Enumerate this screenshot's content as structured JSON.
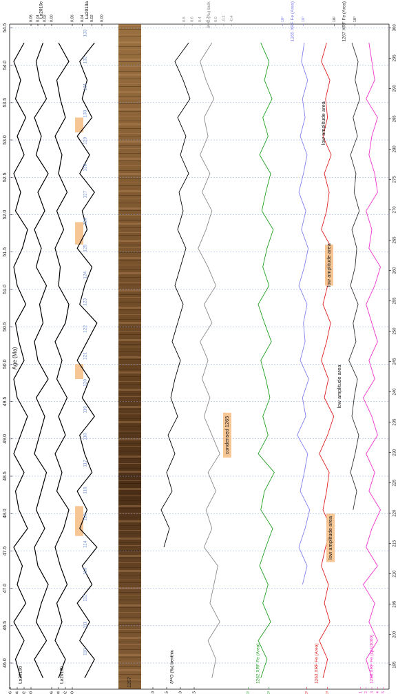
{
  "chart_data": {
    "type": "proxy-stack",
    "x_label": "Age (Ma)",
    "xlim": [
      45.65,
      54.55
    ],
    "xticks": [
      {
        "value": 46,
        "label": "46.0"
      },
      46.5,
      {
        "value": 47,
        "label": "47.0"
      },
      47.5,
      {
        "value": 48,
        "label": "48.0"
      },
      48.5,
      {
        "value": 49,
        "label": "49.0"
      },
      49.5,
      {
        "value": 50,
        "label": "50.0"
      },
      50.5,
      {
        "value": 51,
        "label": "51.0"
      },
      51.5,
      {
        "value": 52,
        "label": "52.0"
      },
      52.5,
      {
        "value": 53,
        "label": "53.0"
      },
      53.5,
      {
        "value": 54,
        "label": "54.0"
      },
      54.5
    ],
    "grid": true,
    "x": [
      45.8,
      46.05,
      46.3,
      46.55,
      46.8,
      47.05,
      47.3,
      47.55,
      47.8,
      48.05,
      48.3,
      48.55,
      48.8,
      49.05,
      49.3,
      49.55,
      49.8,
      50.05,
      50.3,
      50.55,
      50.8,
      51.05,
      51.3,
      51.55,
      51.8,
      52.05,
      52.3,
      52.55,
      52.8,
      53.05,
      53.3,
      53.55,
      53.8,
      54.05,
      54.3
    ],
    "series": [
      {
        "name": "La2010d",
        "color": "#000000",
        "ylim": [
          0.06,
          0.0
        ],
        "yticks": [
          {
            "value": 0.06,
            "label": "0.06"
          },
          {
            "value": 0.04,
            "label": "0.04"
          },
          {
            "value": 0.02,
            "label": "0.02"
          },
          {
            "value": 0,
            "label": "0.00"
          }
        ],
        "values": [
          0.03,
          0.045,
          0.02,
          0.05,
          0.015,
          0.04,
          0.025,
          0.05,
          0.01,
          0.035,
          0.045,
          0.02,
          0.05,
          0.03,
          0.01,
          0.04,
          0.05,
          0.02,
          0.035,
          0.045,
          0.015,
          0.04,
          0.05,
          0.025,
          0.01,
          0.045,
          0.03,
          0.05,
          0.02,
          0.04,
          0.015,
          0.045,
          0.03,
          0.05,
          0.02
        ]
      },
      {
        "name": "La2010c",
        "color": "#000000",
        "ylim": [
          0.06,
          0.0
        ],
        "yticks": [
          {
            "value": 0.06,
            "label": "0.06"
          },
          {
            "value": 0.04,
            "label": "0.04"
          },
          {
            "value": 0.02,
            "label": "0.02"
          },
          {
            "value": 0,
            "label": "0.00"
          }
        ],
        "values": [
          0.025,
          0.05,
          0.015,
          0.045,
          0.03,
          0.01,
          0.04,
          0.05,
          0.02,
          0.045,
          0.03,
          0.015,
          0.05,
          0.035,
          0.02,
          0.045,
          0.01,
          0.04,
          0.05,
          0.025,
          0.035,
          0.015,
          0.045,
          0.03,
          0.05,
          0.02,
          0.04,
          0.01,
          0.045,
          0.03,
          0.05,
          0.015,
          0.035,
          0.045,
          0.025
        ]
      },
      {
        "name": "La2010b",
        "color": "#000000",
        "ylim": [
          0.06,
          0.0
        ],
        "yticks": [
          {
            "value": 0.06,
            "label": "0.06"
          },
          {
            "value": 0.04,
            "label": "0.04"
          },
          {
            "value": 0.02,
            "label": "0.02"
          },
          {
            "value": 0,
            "label": "0.00"
          }
        ],
        "values": [
          0.04,
          0.02,
          0.05,
          0.03,
          0.045,
          0.015,
          0.035,
          0.05,
          0.025,
          0.01,
          0.045,
          0.03,
          0.05,
          0.02,
          0.04,
          0.015,
          0.045,
          0.03,
          0.05,
          0.02,
          0.01,
          0.04,
          0.035,
          0.05,
          0.025,
          0.045,
          0.015,
          0.04,
          0.03,
          0.05,
          0.02,
          0.035,
          0.045,
          0.01,
          0.04
        ]
      },
      {
        "name": "La2010a",
        "color": "#000000",
        "ylim": [
          0.06,
          0.0
        ],
        "yticks": [
          {
            "value": 0.06,
            "label": "0.06"
          },
          {
            "value": 0.04,
            "label": "0.04"
          },
          {
            "value": 0.02,
            "label": "0.02"
          },
          {
            "value": 0,
            "label": "0.00"
          }
        ],
        "values": [
          0.035,
          0.015,
          0.045,
          0.025,
          0.05,
          0.02,
          0.04,
          0.01,
          0.045,
          0.03,
          0.05,
          0.02,
          0.035,
          0.045,
          0.015,
          0.04,
          0.025,
          0.05,
          0.03,
          0.01,
          0.045,
          0.035,
          0.02,
          0.05,
          0.03,
          0.04,
          0.015,
          0.045,
          0.025,
          0.05,
          0.02,
          0.04,
          0.03,
          0.045,
          0.015
        ]
      },
      {
        "name": "δ¹⁸O (‰) benthic",
        "color": "#000000",
        "ylim": [
          1.3,
          -0.7
        ],
        "yticks": [
          {
            "value": 1,
            "label": "1.0"
          },
          0.5,
          {
            "value": 0,
            "label": "0.0"
          },
          -0.5
        ],
        "values": [
          null,
          null,
          null,
          null,
          null,
          null,
          null,
          0.6,
          0.4,
          0.7,
          0.3,
          0.5,
          0.2,
          0.45,
          0.1,
          0.35,
          0.2,
          0.0,
          0.3,
          0.1,
          -0.1,
          0.2,
          0.0,
          -0.2,
          0.1,
          -0.1,
          0.05,
          -0.3,
          0.0,
          -0.2,
          0.1,
          -0.35,
          -0.1,
          0.2,
          -0.3
        ]
      },
      {
        "name": "δ¹³C (‰) bulk",
        "color": "#8a8a8a",
        "ylim": [
          0.9,
          -0.55
        ],
        "yticks": [
          0.8,
          0.6,
          0.4,
          0.2,
          {
            "value": 0,
            "label": "0.0"
          },
          -0.2,
          -0.4
        ],
        "values": [
          0.1,
          0.0,
          0.2,
          -0.1,
          0.15,
          0.05,
          -0.05,
          0.3,
          0.1,
          0.25,
          0.0,
          0.2,
          -0.1,
          0.1,
          0.3,
          0.15,
          0.35,
          0.2,
          0.4,
          0.1,
          0.3,
          0.0,
          0.2,
          0.45,
          0.25,
          0.1,
          0.35,
          0.15,
          0.4,
          0.2,
          0.3,
          0.05,
          0.25,
          0.4,
          0.1
        ]
      },
      {
        "name": "1262 XRF Fe (Area)",
        "color": "#1f9e1f",
        "log": true,
        "ylim": [
          30,
          3000
        ],
        "yticks": [
          {
            "value": 100,
            "label": "10²"
          },
          {
            "value": 1000,
            "label": "10³"
          }
        ],
        "values": [
          400,
          800,
          300,
          1200,
          500,
          900,
          350,
          700,
          1500,
          400,
          600,
          1800,
          300,
          900,
          500,
          1100,
          700,
          400,
          1300,
          600,
          300,
          1000,
          500,
          800,
          1600,
          450,
          700,
          1200,
          350,
          900,
          500,
          1400,
          600,
          1000,
          400
        ]
      },
      {
        "name": "1265 XRF Fe (Area)",
        "color": "#8080ee",
        "log": true,
        "ylim": [
          30,
          3000
        ],
        "yticks": [
          {
            "value": 100,
            "label": "10²"
          },
          {
            "value": 1000,
            "label": "10³"
          }
        ],
        "values": [
          null,
          null,
          null,
          null,
          null,
          900,
          1500,
          600,
          1200,
          2000,
          700,
          1100,
          1600,
          500,
          1300,
          900,
          1800,
          700,
          1200,
          1000,
          1500,
          600,
          1100,
          1700,
          800,
          1300,
          600,
          1000,
          1500,
          700,
          1200,
          900,
          1600,
          800,
          1100
        ]
      },
      {
        "name": "1263 XRF Fe (Area)",
        "color": "#e01e1e",
        "log": true,
        "ylim": [
          30,
          3000
        ],
        "yticks": [
          {
            "value": 100,
            "label": "10²"
          },
          {
            "value": 1000,
            "label": "10³"
          }
        ],
        "values": [
          600,
          1000,
          400,
          1300,
          700,
          1100,
          500,
          800,
          1500,
          600,
          900,
          1200,
          400,
          1000,
          2000,
          700,
          1100,
          500,
          900,
          1400,
          600,
          1000,
          800,
          1600,
          500,
          900,
          1200,
          700,
          1500,
          600,
          1000,
          800,
          1300,
          500,
          900
        ]
      },
      {
        "name": "1267 XRF Fe (Area)",
        "color": "#333333",
        "log": true,
        "ylim": [
          30,
          3000
        ],
        "yticks": [
          {
            "value": 100,
            "label": "10²"
          },
          {
            "value": 1000,
            "label": "10³"
          }
        ],
        "values": [
          null,
          null,
          null,
          null,
          null,
          null,
          null,
          null,
          null,
          800,
          1200,
          600,
          1000,
          1500,
          700,
          900,
          1300,
          500,
          1100,
          800,
          1400,
          600,
          1000,
          1200,
          700,
          1600,
          900,
          1100,
          600,
          1300,
          800,
          1700,
          1000,
          1400,
          700
        ]
      },
      {
        "name": "1258 XRF Fe (cps/1000)",
        "color": "#ee33cc",
        "ylim": [
          0,
          6
        ],
        "yticks": [
          1,
          2,
          3,
          4,
          5
        ],
        "values": [
          3,
          2,
          4,
          2.5,
          3.5,
          1.5,
          4,
          2,
          3,
          4.5,
          2.5,
          3.5,
          2,
          4,
          3,
          1.5,
          3.5,
          2.5,
          4,
          3,
          2,
          3.5,
          4.5,
          2.5,
          3,
          2,
          4,
          3.5,
          2.5,
          3,
          4,
          2,
          3.5,
          3,
          2.5
        ]
      }
    ],
    "core_label": "1267",
    "cycle_numbers": [
      110,
      111,
      112,
      113,
      114,
      115,
      116,
      117,
      118,
      119,
      120,
      121,
      122,
      123,
      124,
      125,
      126,
      127,
      128,
      129,
      130,
      131,
      132,
      133
    ],
    "cycle_ages": [
      46.15,
      46.51,
      46.87,
      47.23,
      47.59,
      47.95,
      48.31,
      48.67,
      49.03,
      49.39,
      49.75,
      50.11,
      50.47,
      50.83,
      51.19,
      51.55,
      51.91,
      52.27,
      52.63,
      52.99,
      53.35,
      53.71,
      54.07,
      54.43
    ],
    "highlight_spans": [
      [
        47.7,
        48.1
      ],
      [
        49.8,
        50.0
      ],
      [
        51.6,
        51.9
      ],
      [
        53.1,
        53.3
      ]
    ],
    "annotations": [
      {
        "text": "condensed 1265",
        "span": [
          48.75,
          49.35
        ],
        "boxed": true
      },
      {
        "text": "low amplitude area",
        "span": [
          47.35,
          48.0
        ],
        "boxed": true
      },
      {
        "text": "low amplitude area",
        "span": [
          49.45,
          49.95
        ],
        "boxed": false
      },
      {
        "text": "low amplitude area",
        "span": [
          51.05,
          51.6
        ],
        "boxed": true
      },
      {
        "text": "low amplitude area",
        "span": [
          53.0,
          53.45
        ],
        "boxed": false
      }
    ],
    "depth_lim": [
      191.0,
      300.6
    ],
    "depth_ticks": [
      195,
      200,
      205,
      210,
      215,
      220,
      225,
      230,
      235,
      240,
      245,
      250,
      255,
      260,
      265,
      270,
      275,
      280,
      285,
      290,
      295,
      300
    ]
  }
}
